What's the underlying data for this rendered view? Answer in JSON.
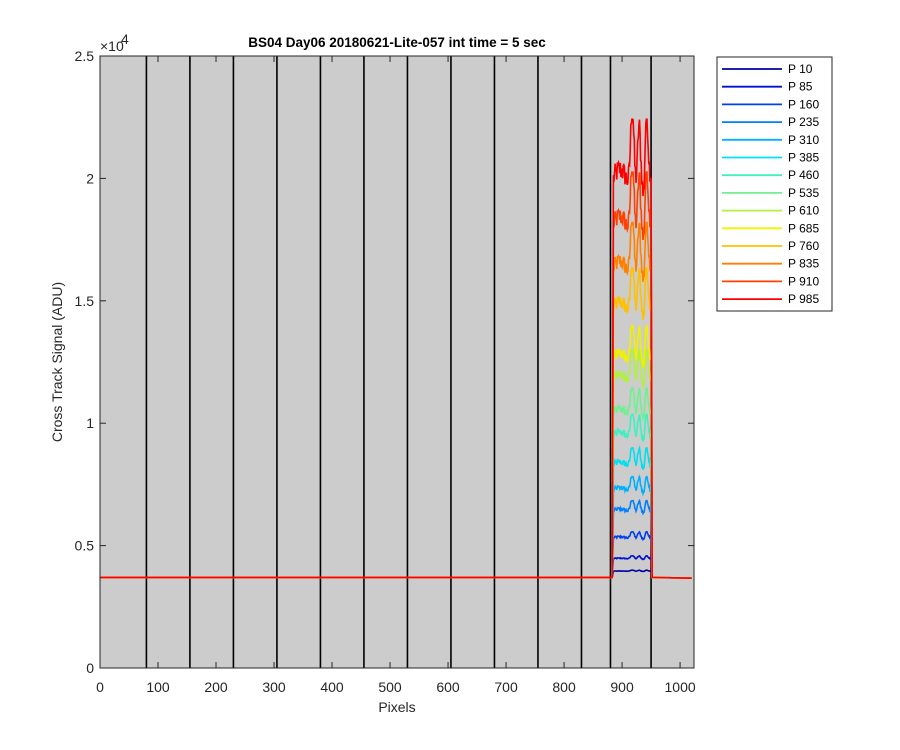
{
  "chart_data": {
    "type": "line",
    "title": "BS04 Day06 20180621-Lite-057 int time = 5 sec",
    "xlabel": "Pixels",
    "ylabel": "Cross Track Signal (ADU)",
    "xlim": [
      0,
      1024
    ],
    "ylim": [
      0,
      25000
    ],
    "y_exponent_label": "×10",
    "y_exponent_power": "4",
    "x_ticks": [
      0,
      100,
      200,
      300,
      400,
      500,
      600,
      700,
      800,
      900,
      1000
    ],
    "x_tick_labels": [
      "0",
      "100",
      "200",
      "300",
      "400",
      "500",
      "600",
      "700",
      "800",
      "900",
      "1000"
    ],
    "y_ticks": [
      0,
      5000,
      10000,
      15000,
      20000,
      25000
    ],
    "y_tick_labels": [
      "0",
      "0.5",
      "1",
      "1.5",
      "2",
      "2.5"
    ],
    "background_color": "#cccccc",
    "vertical_dividers_x": [
      80,
      155,
      230,
      305,
      380,
      455,
      530,
      605,
      680,
      755,
      830,
      880,
      950
    ],
    "baseline": 3700,
    "signal_region": [
      885,
      950
    ],
    "legend_placement": "outside-right",
    "series": [
      {
        "name": "P 10",
        "color": "#0000a0",
        "peak_mean": 3800,
        "peak_max": 4000
      },
      {
        "name": "P 85",
        "color": "#0010d0",
        "peak_mean": 4150,
        "peak_max": 4600
      },
      {
        "name": "P 160",
        "color": "#0040f0",
        "peak_mean": 4900,
        "peak_max": 5600
      },
      {
        "name": "P 235",
        "color": "#0080ff",
        "peak_mean": 5800,
        "peak_max": 6900
      },
      {
        "name": "P 310",
        "color": "#00b0ff",
        "peak_mean": 6700,
        "peak_max": 7900
      },
      {
        "name": "P 385",
        "color": "#00e0f0",
        "peak_mean": 7900,
        "peak_max": 9100
      },
      {
        "name": "P 460",
        "color": "#40f0c0",
        "peak_mean": 8700,
        "peak_max": 10500
      },
      {
        "name": "P 535",
        "color": "#70f090",
        "peak_mean": 9900,
        "peak_max": 11600
      },
      {
        "name": "P 610",
        "color": "#b0f040",
        "peak_mean": 11100,
        "peak_max": 13200
      },
      {
        "name": "P 685",
        "color": "#f0f000",
        "peak_mean": 11800,
        "peak_max": 14200
      },
      {
        "name": "P 760",
        "color": "#ffc000",
        "peak_mean": 13300,
        "peak_max": 16600
      },
      {
        "name": "P 835",
        "color": "#ff8000",
        "peak_mean": 15000,
        "peak_max": 18500
      },
      {
        "name": "P 910",
        "color": "#ff4000",
        "peak_mean": 16800,
        "peak_max": 20600
      },
      {
        "name": "P 985",
        "color": "#ff0000",
        "peak_mean": 18600,
        "peak_max": 22800
      }
    ]
  }
}
